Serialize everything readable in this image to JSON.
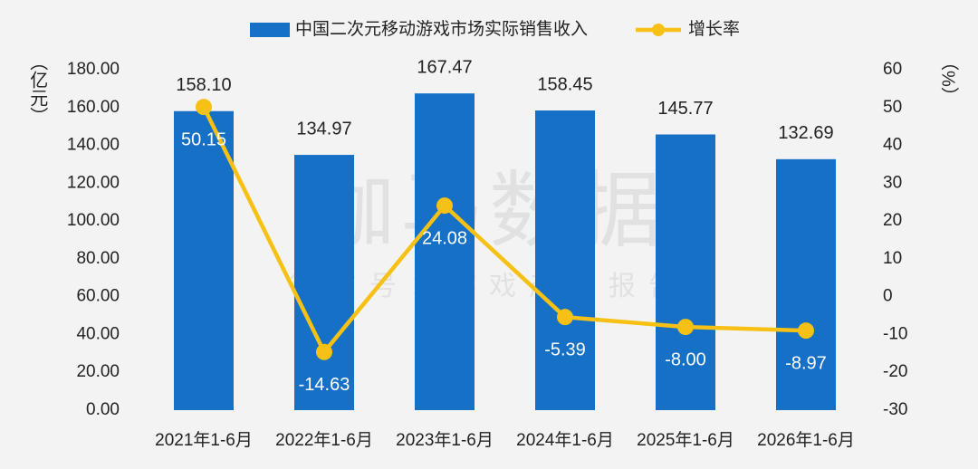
{
  "chart_data": {
    "type": "bar",
    "watermark": "伽马数据",
    "watermark_sub": "微信号：游戏产业报告",
    "y_label": "（亿元）",
    "y2_label": "（%）",
    "categories": [
      "2021年1-6月",
      "2022年1-6月",
      "2023年1-6月",
      "2024年1-6月",
      "2025年1-6月",
      "2026年1-6月"
    ],
    "series": [
      {
        "name": "中国二次元移动游戏市场实际销售收入",
        "type": "bar",
        "color": "#1570c6",
        "values": [
          158.1,
          134.97,
          167.47,
          158.45,
          145.77,
          132.69
        ],
        "value_labels": [
          "158.10",
          "134.97",
          "167.47",
          "158.45",
          "145.77",
          "132.69"
        ]
      },
      {
        "name": "增长率",
        "type": "line",
        "axis": "y2",
        "color": "#f6c015",
        "values": [
          50.15,
          -14.63,
          24.08,
          -5.39,
          -8.0,
          -8.97
        ],
        "value_labels": [
          "50.15",
          "-14.63",
          "24.08",
          "-5.39",
          "-8.00",
          "-8.97"
        ]
      }
    ],
    "ylim": [
      0,
      180
    ],
    "yticks": [
      {
        "value": 0,
        "label": "0.00"
      },
      {
        "value": 20,
        "label": "20.00"
      },
      {
        "value": 40,
        "label": "40.00"
      },
      {
        "value": 60,
        "label": "60.00"
      },
      {
        "value": 80,
        "label": "80.00"
      },
      {
        "value": 100,
        "label": "100.00"
      },
      {
        "value": 120,
        "label": "120.00"
      },
      {
        "value": 140,
        "label": "140.00"
      },
      {
        "value": 160,
        "label": "160.00"
      },
      {
        "value": 180,
        "label": "180.00"
      }
    ],
    "y2lim": [
      -30,
      60
    ],
    "y2ticks": [
      -30,
      -20,
      -10,
      0,
      10,
      20,
      30,
      40,
      50,
      60
    ],
    "legend": "top"
  }
}
